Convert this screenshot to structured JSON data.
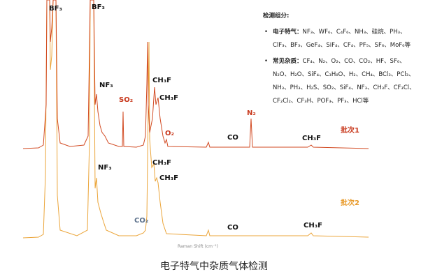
{
  "peak_labels": [
    "BF₃",
    "BF₃",
    "NF₃",
    "SO₂",
    "CH₃F",
    "CH₃F",
    "O₂",
    "CO",
    "N₂",
    "CH₃F",
    "NF₃",
    "CO₂",
    "CH₃F",
    "CH₃F",
    "CO",
    "CH₃F"
  ],
  "series_labels": [
    "批次1",
    "批次2"
  ],
  "x_axis_label": "Raman Shift (cm⁻¹)",
  "caption": "电子特气中杂质气体检测",
  "legend_box": {
    "heading": "检测组分:",
    "items": [
      {
        "label": "电子特气：",
        "text": "NF₃、WF₆、C₄F₆、NH₃、硅烷、PH₃、ClF₃、BF₃、GeF₄、SiF₄、CF₄、PF₅、SF₆、MoF₆等"
      },
      {
        "label": "常见杂质：",
        "text": "CF₄、N₂、O₂、CO、CO₂、HF、SF₆、N₂O、H₂O、SiF₄、C₃H₈O、H₂、CH₄、BCl₃、PCl₃、NH₃、PH₃、H₂S、SO₂、SiF₄、NF₃、CH₃F、CF₃Cl、CF₂Cl₂、CF₃H、POF₃、PF₃、HCl等"
      }
    ]
  }
}
